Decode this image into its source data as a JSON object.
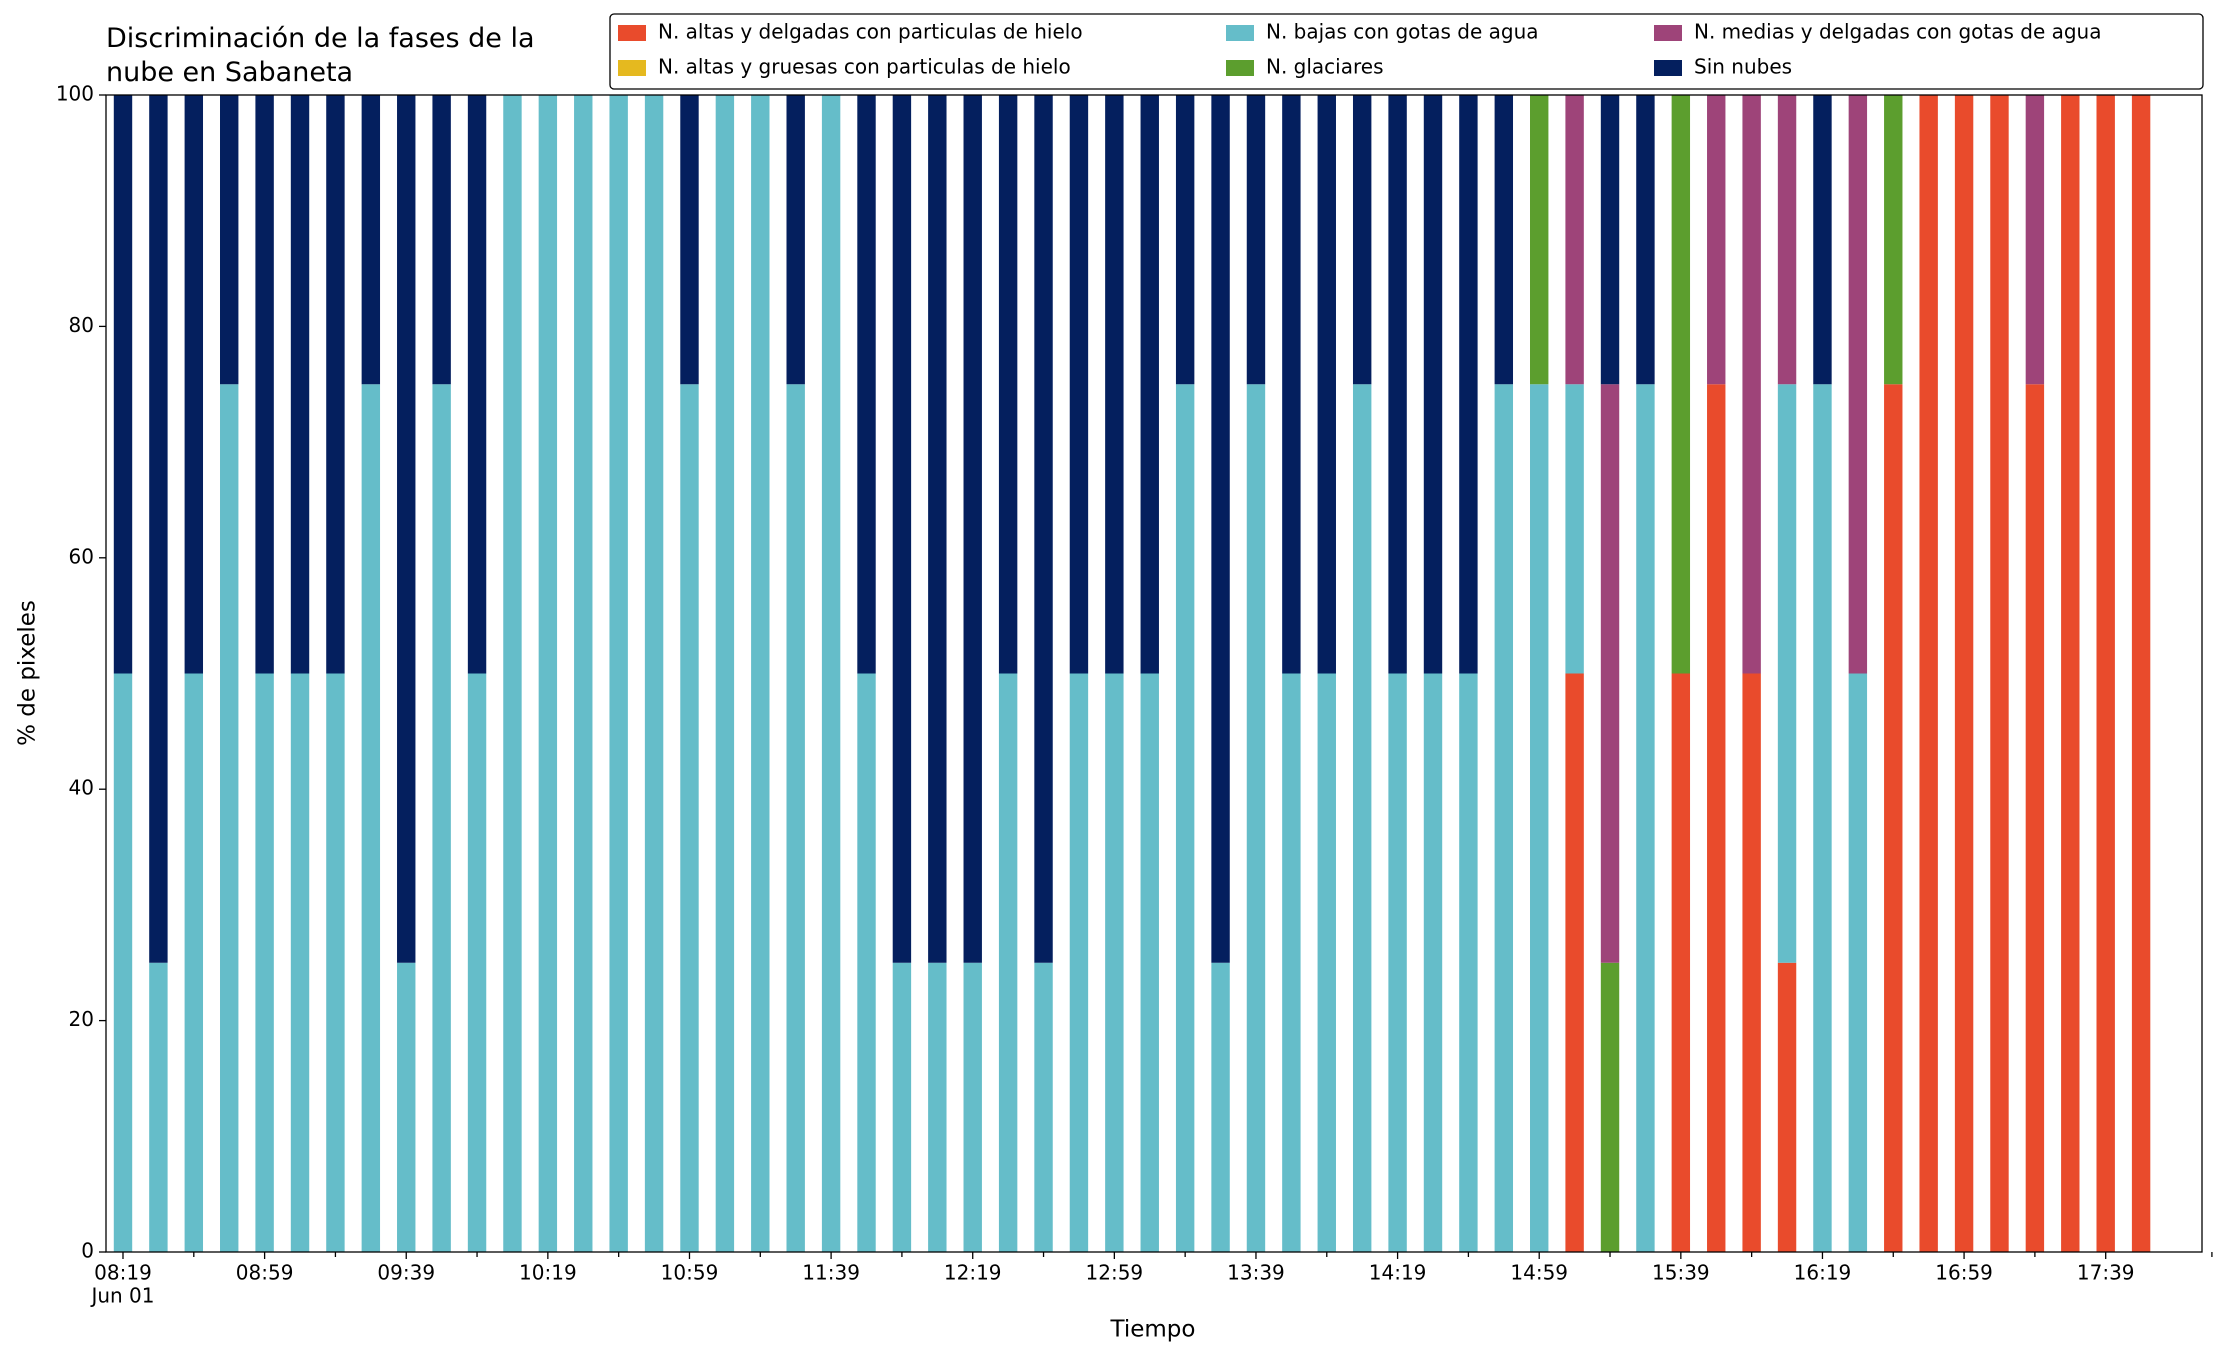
{
  "chart_data": {
    "type": "stacked_bar",
    "title": "Discriminación de la fases de la\nnube en Sabaneta",
    "x_label": "Tiempo",
    "y_label": "% de pixeles",
    "categories": [
      "08:19",
      null,
      null,
      null,
      "08:59",
      null,
      null,
      null,
      "09:39",
      null,
      null,
      null,
      "10:19",
      null,
      null,
      null,
      "10:59",
      null,
      null,
      null,
      "11:39",
      null,
      null,
      null,
      "12:19",
      null,
      null,
      null,
      "12:59",
      null,
      null,
      null,
      "13:39",
      null,
      null,
      null,
      "14:19",
      null,
      null,
      null,
      "14:59",
      null,
      null,
      null,
      "15:39",
      null,
      null,
      null,
      "16:19",
      null,
      null,
      null,
      "16:59",
      null,
      null,
      null,
      "17:39",
      null
    ],
    "x_sublabel": "Jun 01",
    "ylim": [
      0,
      100
    ],
    "yticks": [
      0,
      20,
      40,
      60,
      80,
      100
    ],
    "legend_position": "top",
    "series": [
      {
        "name": "N. altas y delgadas con particulas de hielo",
        "color": "#e94b2c",
        "values": [
          0,
          0,
          0,
          0,
          0,
          0,
          0,
          0,
          0,
          0,
          0,
          0,
          0,
          0,
          0,
          0,
          0,
          0,
          0,
          0,
          0,
          0,
          0,
          0,
          0,
          0,
          0,
          0,
          0,
          0,
          0,
          0,
          0,
          0,
          0,
          0,
          0,
          0,
          0,
          0,
          0,
          50,
          0,
          0,
          50,
          75,
          50,
          25,
          0,
          0,
          75,
          100,
          100,
          100,
          75,
          100,
          100,
          100
        ]
      },
      {
        "name": "N. altas y gruesas con particulas de hielo",
        "color": "#e5b91f",
        "values": [
          0,
          0,
          0,
          0,
          0,
          0,
          0,
          0,
          0,
          0,
          0,
          0,
          0,
          0,
          0,
          0,
          0,
          0,
          0,
          0,
          0,
          0,
          0,
          0,
          0,
          0,
          0,
          0,
          0,
          0,
          0,
          0,
          0,
          0,
          0,
          0,
          0,
          0,
          0,
          0,
          0,
          0,
          0,
          0,
          0,
          0,
          0,
          0,
          0,
          0,
          0,
          0,
          0,
          0,
          0,
          0,
          0,
          0
        ]
      },
      {
        "name": "N. bajas con gotas de agua",
        "color": "#65bdc9",
        "values": [
          50,
          25,
          50,
          75,
          50,
          50,
          50,
          75,
          25,
          75,
          50,
          100,
          100,
          100,
          100,
          100,
          75,
          100,
          100,
          75,
          100,
          50,
          25,
          25,
          25,
          50,
          25,
          50,
          50,
          50,
          75,
          25,
          75,
          50,
          50,
          75,
          50,
          50,
          50,
          75,
          75,
          25,
          0,
          75,
          0,
          0,
          0,
          50,
          75,
          50,
          0,
          0,
          0,
          0,
          0,
          0,
          0,
          0
        ]
      },
      {
        "name": "N. glaciares",
        "color": "#5c9e2e",
        "values": [
          0,
          0,
          0,
          0,
          0,
          0,
          0,
          0,
          0,
          0,
          0,
          0,
          0,
          0,
          0,
          0,
          0,
          0,
          0,
          0,
          0,
          0,
          0,
          0,
          0,
          0,
          0,
          0,
          0,
          0,
          0,
          0,
          0,
          0,
          0,
          0,
          0,
          0,
          0,
          0,
          25,
          0,
          25,
          0,
          50,
          0,
          0,
          0,
          0,
          0,
          25,
          0,
          0,
          0,
          0,
          0,
          0,
          0
        ]
      },
      {
        "name": "N. medias y delgadas con gotas de agua",
        "color": "#9e4479",
        "values": [
          0,
          0,
          0,
          0,
          0,
          0,
          0,
          0,
          0,
          0,
          0,
          0,
          0,
          0,
          0,
          0,
          0,
          0,
          0,
          0,
          0,
          0,
          0,
          0,
          0,
          0,
          0,
          0,
          0,
          0,
          0,
          0,
          0,
          0,
          0,
          0,
          0,
          0,
          0,
          0,
          0,
          25,
          50,
          0,
          0,
          25,
          50,
          25,
          0,
          50,
          0,
          0,
          0,
          0,
          25,
          0,
          0,
          0
        ]
      },
      {
        "name": "Sin nubes",
        "color": "#041f5e",
        "values": [
          50,
          75,
          50,
          25,
          50,
          50,
          50,
          25,
          75,
          25,
          50,
          0,
          0,
          0,
          0,
          0,
          25,
          0,
          0,
          25,
          0,
          50,
          75,
          75,
          75,
          50,
          75,
          50,
          50,
          50,
          25,
          75,
          25,
          50,
          50,
          25,
          50,
          50,
          50,
          25,
          0,
          0,
          25,
          25,
          0,
          0,
          0,
          0,
          25,
          0,
          0,
          0,
          0,
          0,
          0,
          0,
          0,
          0
        ]
      }
    ]
  }
}
